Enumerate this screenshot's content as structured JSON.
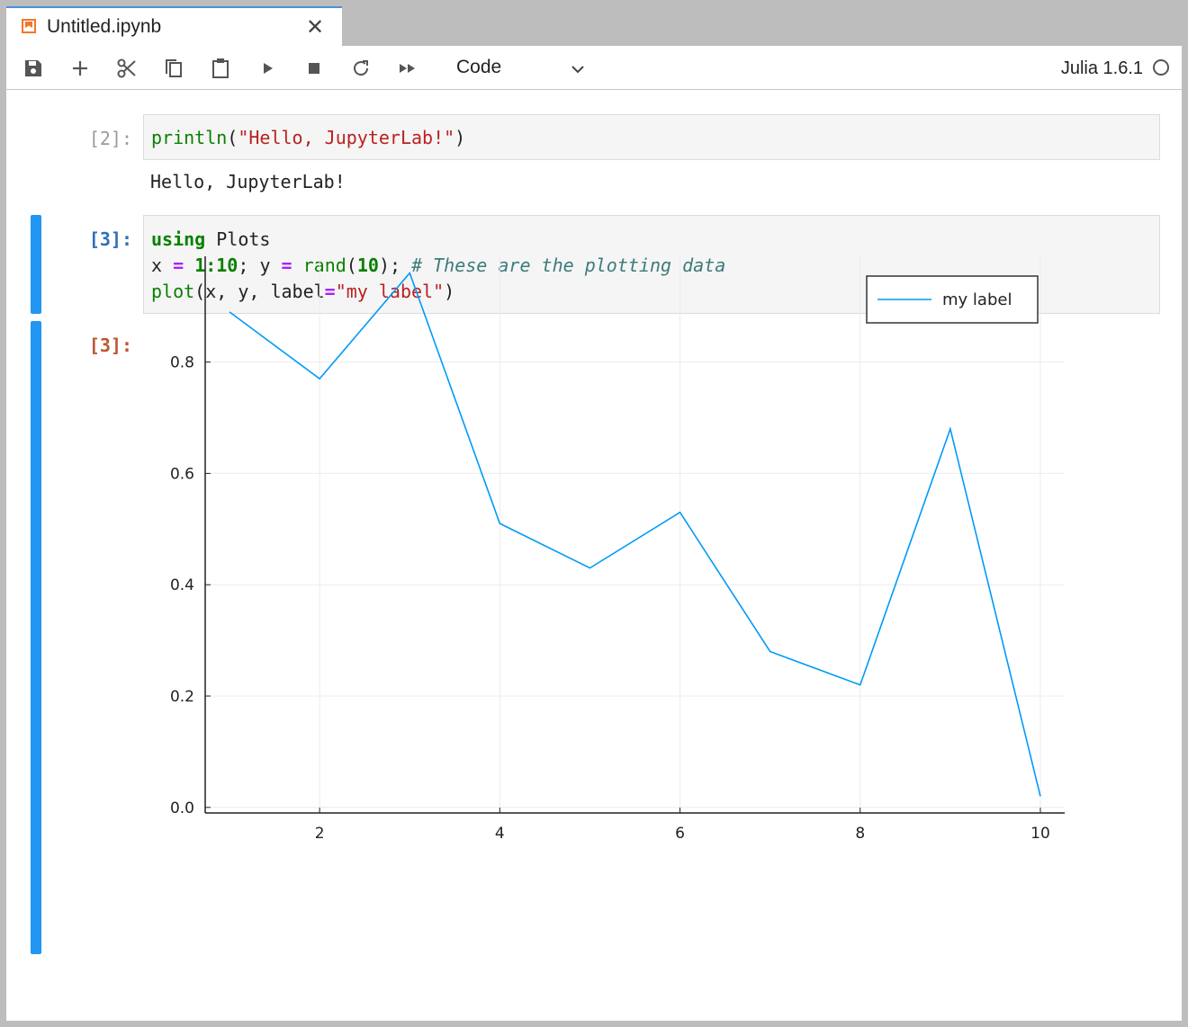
{
  "tab": {
    "title": "Untitled.ipynb",
    "close_glyph": "✕",
    "icon": "notebook-icon"
  },
  "toolbar": {
    "buttons": [
      {
        "name": "save-button",
        "icon": "save-icon"
      },
      {
        "name": "add-cell-button",
        "icon": "plus-icon"
      },
      {
        "name": "cut-button",
        "icon": "scissors-icon"
      },
      {
        "name": "copy-button",
        "icon": "copy-icon"
      },
      {
        "name": "paste-button",
        "icon": "paste-icon"
      },
      {
        "name": "run-button",
        "icon": "play-icon"
      },
      {
        "name": "interrupt-button",
        "icon": "stop-icon"
      },
      {
        "name": "restart-button",
        "icon": "refresh-icon"
      },
      {
        "name": "run-all-button",
        "icon": "fast-forward-icon"
      }
    ],
    "cell_type": "Code",
    "kernel": "Julia 1.6.1"
  },
  "cells": [
    {
      "prompt": "[2]:",
      "code": {
        "fn": "println",
        "open": "(",
        "str": "\"Hello, JupyterLab!\"",
        "close": ")"
      },
      "output": "Hello, JupyterLab!"
    },
    {
      "prompt": "[3]:",
      "code": {
        "line1_kw": "using",
        "line1_rest": " Plots",
        "line2_a": "x ",
        "line2_eq1": "=",
        "line2_b": " ",
        "line2_range": "1:10",
        "line2_c": "; y ",
        "line2_eq2": "=",
        "line2_d": " ",
        "line2_fn": "rand",
        "line2_e": "(",
        "line2_num": "10",
        "line2_f": "); ",
        "line2_comment": "# These are the plotting data",
        "line3_fn": "plot",
        "line3_a": "(x, y, label",
        "line3_eq": "=",
        "line3_str": "\"my label\"",
        "line3_b": ")"
      },
      "output_prompt": "[3]:"
    }
  ],
  "chart_data": {
    "type": "line",
    "x": [
      1,
      2,
      3,
      4,
      5,
      6,
      7,
      8,
      9,
      10
    ],
    "series": [
      {
        "name": "my label",
        "values": [
          0.89,
          0.77,
          0.96,
          0.51,
          0.43,
          0.53,
          0.28,
          0.22,
          0.68,
          0.02
        ],
        "color": "#009af9"
      }
    ],
    "xlim": [
      0.73,
      10.27
    ],
    "ylim": [
      -0.01,
      0.99
    ],
    "xticks": [
      2,
      4,
      6,
      8,
      10
    ],
    "yticks": [
      0.0,
      0.2,
      0.4,
      0.6,
      0.8
    ],
    "ytick_labels": [
      "0.0",
      "0.2",
      "0.4",
      "0.6",
      "0.8"
    ],
    "xtick_labels": [
      "2",
      "4",
      "6",
      "8",
      "10"
    ],
    "grid": true,
    "legend": "top-right"
  }
}
